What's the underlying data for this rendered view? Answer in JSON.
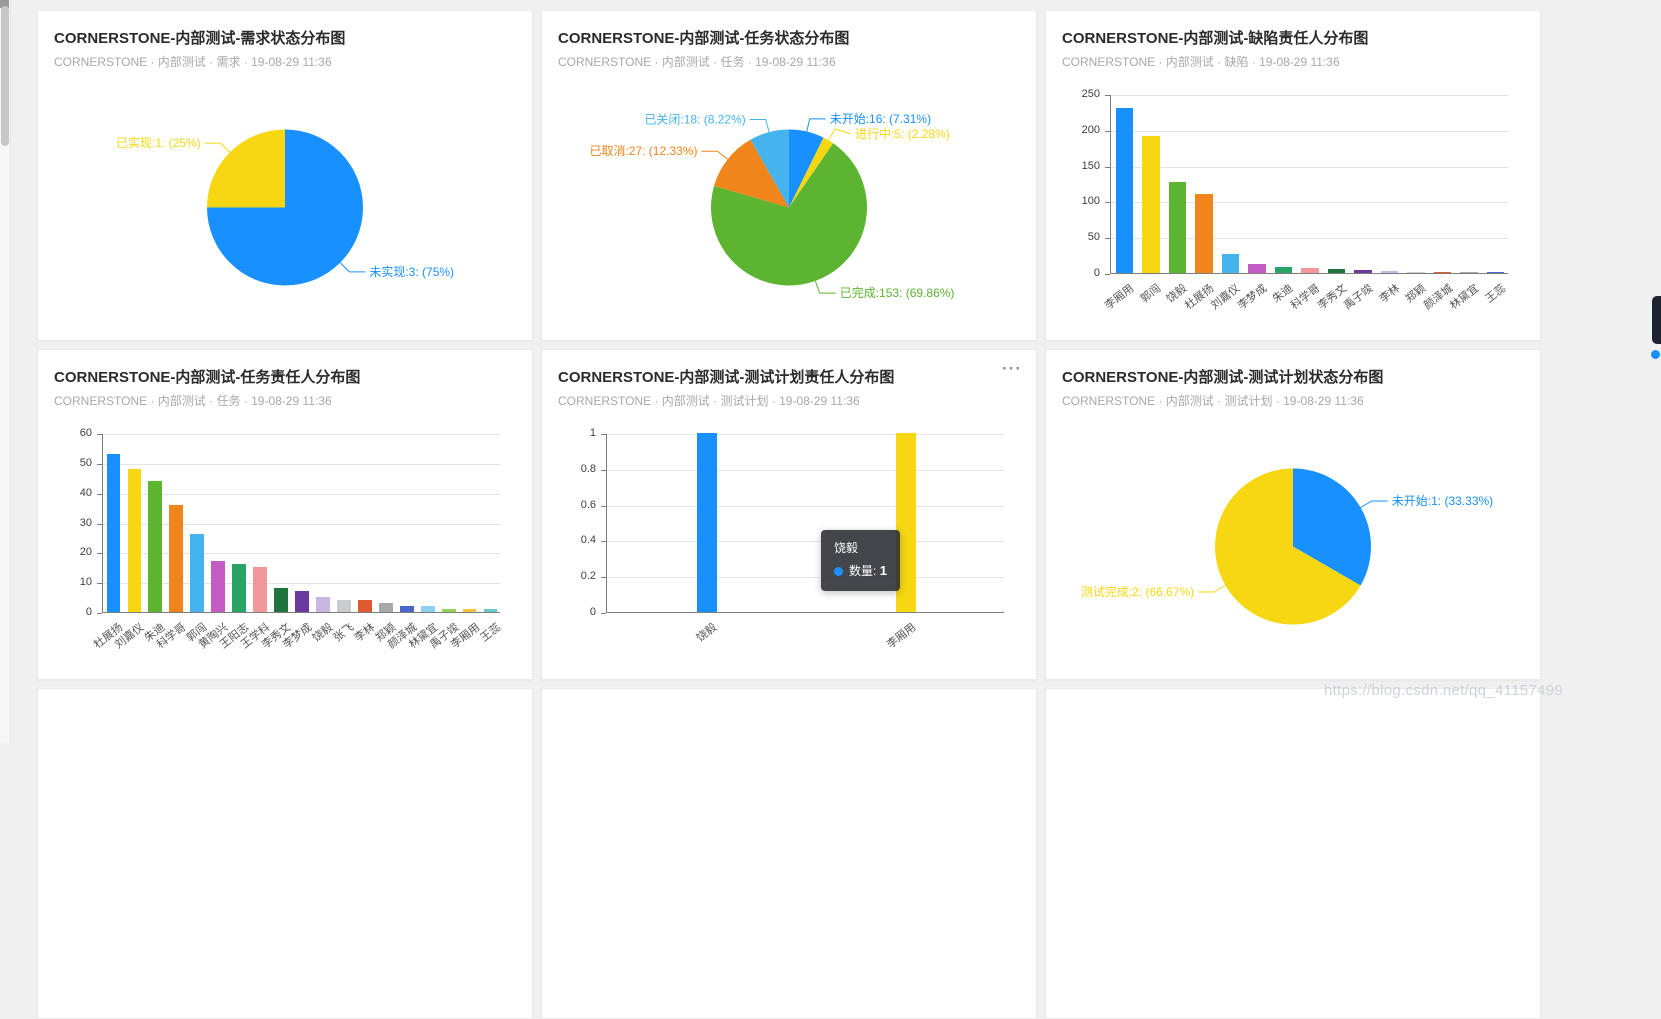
{
  "page": {
    "background": "#f0f0f0",
    "watermark": "https://blog.csdn.net/qq_41157499"
  },
  "palette": [
    "#1890ff",
    "#f6d712",
    "#5cb431",
    "#f0851c",
    "#45b4ee",
    "#c35cc3",
    "#27a466",
    "#f0989a",
    "#20753f",
    "#6b3a9e",
    "#cbb6e3",
    "#c8cbd0",
    "#df5a31",
    "#a6a9ad",
    "#4968c9",
    "#8fd0f0",
    "#94d35c",
    "#f5c23c",
    "#6bc8c8"
  ],
  "cards": [
    {
      "title": "CORNERSTONE-内部测试-需求状态分布图",
      "subtitle": "CORNERSTONE · 内部测试 · 需求 · 19-08-29 11:36"
    },
    {
      "title": "CORNERSTONE-内部测试-任务状态分布图",
      "subtitle": "CORNERSTONE · 内部测试 · 任务 · 19-08-29 11:36"
    },
    {
      "title": "CORNERSTONE-内部测试-缺陷责任人分布图",
      "subtitle": "CORNERSTONE · 内部测试 · 缺陷 · 19-08-29 11:36"
    },
    {
      "title": "CORNERSTONE-内部测试-任务责任人分布图",
      "subtitle": "CORNERSTONE · 内部测试 · 任务 · 19-08-29 11:36"
    },
    {
      "title": "CORNERSTONE-内部测试-测试计划责任人分布图",
      "subtitle": "CORNERSTONE · 内部测试 · 测试计划 · 19-08-29 11:36",
      "more": "···"
    },
    {
      "title": "CORNERSTONE-内部测试-测试计划状态分布图",
      "subtitle": "CORNERSTONE · 内部测试 · 测试计划 · 19-08-29 11:36"
    }
  ],
  "chart_data": [
    {
      "type": "pie",
      "title": "CORNERSTONE-内部测试-需求状态分布图",
      "slices": [
        {
          "name": "未实现",
          "value": 3,
          "pct": "75%",
          "label": "未实现:3: (75%)",
          "color": "#1890ff"
        },
        {
          "name": "已实现",
          "value": 1,
          "pct": "25%",
          "label": "已实现:1: (25%)",
          "color": "#f6d712"
        }
      ]
    },
    {
      "type": "pie",
      "title": "CORNERSTONE-内部测试-任务状态分布图",
      "slices": [
        {
          "name": "未开始",
          "value": 16,
          "pct": "7.31%",
          "label": "未开始:16: (7.31%)",
          "color": "#1890ff"
        },
        {
          "name": "进行中",
          "value": 5,
          "pct": "2.28%",
          "label": "进行中:5: (2.28%)",
          "color": "#f6d712"
        },
        {
          "name": "已完成",
          "value": 153,
          "pct": "69.86%",
          "label": "已完成:153: (69.86%)",
          "color": "#5cb431"
        },
        {
          "name": "已取消",
          "value": 27,
          "pct": "12.33%",
          "label": "已取消:27: (12.33%)",
          "color": "#f0851c"
        },
        {
          "name": "已关闭",
          "value": 18,
          "pct": "8.22%",
          "label": "已关闭:18: (8.22%)",
          "color": "#45b4ee"
        }
      ]
    },
    {
      "type": "bar",
      "title": "CORNERSTONE-内部测试-缺陷责任人分布图",
      "categories": [
        "李厢用",
        "郭闯",
        "饶毅",
        "杜展扬",
        "刘嘉仪",
        "李梦成",
        "朱迪",
        "科学哥",
        "李秀文",
        "禹子竣",
        "李林",
        "郑颖",
        "颜泽城",
        "林黛宜",
        "王蕊"
      ],
      "values": [
        230,
        192,
        127,
        110,
        27,
        13,
        8,
        7,
        5,
        4,
        3,
        2,
        2,
        1,
        1
      ],
      "ylim": [
        0,
        250
      ],
      "interval": 50,
      "grid": true,
      "xlabel": "",
      "ylabel": ""
    },
    {
      "type": "bar",
      "title": "CORNERSTONE-内部测试-任务责任人分布图",
      "categories": [
        "杜展扬",
        "刘嘉仪",
        "朱迪",
        "科学哥",
        "郭闯",
        "黄陶兴",
        "王阳志",
        "王学科",
        "李秀文",
        "李梦成",
        "饶毅",
        "张飞",
        "李林",
        "郑颖",
        "颜泽城",
        "林黛宜",
        "禹子竣",
        "李厢用",
        "王蕊"
      ],
      "values": [
        53,
        48,
        44,
        36,
        26,
        17,
        16,
        15,
        8,
        7,
        5,
        4,
        4,
        3,
        2,
        2,
        1,
        1,
        1
      ],
      "ylim": [
        0,
        60
      ],
      "interval": 10,
      "grid": true,
      "xlabel": "",
      "ylabel": ""
    },
    {
      "type": "bar",
      "title": "CORNERSTONE-内部测试-测试计划责任人分布图",
      "categories": [
        "饶毅",
        "李厢用"
      ],
      "values": [
        1,
        1
      ],
      "colors": [
        "#1890ff",
        "#f6d712"
      ],
      "ylim": [
        0,
        1
      ],
      "interval": 0.2,
      "grid": true,
      "tooltip": {
        "name": "饶毅",
        "marker_color": "#1890ff",
        "label": "数量",
        "value": "1"
      }
    },
    {
      "type": "pie",
      "title": "CORNERSTONE-内部测试-测试计划状态分布图",
      "slices": [
        {
          "name": "未开始",
          "value": 1,
          "pct": "33.33%",
          "label": "未开始:1: (33.33%)",
          "color": "#1890ff"
        },
        {
          "name": "测试完成",
          "value": 2,
          "pct": "66.67%",
          "label": "测试完成:2: (66.67%)",
          "color": "#f6d712"
        }
      ]
    }
  ]
}
